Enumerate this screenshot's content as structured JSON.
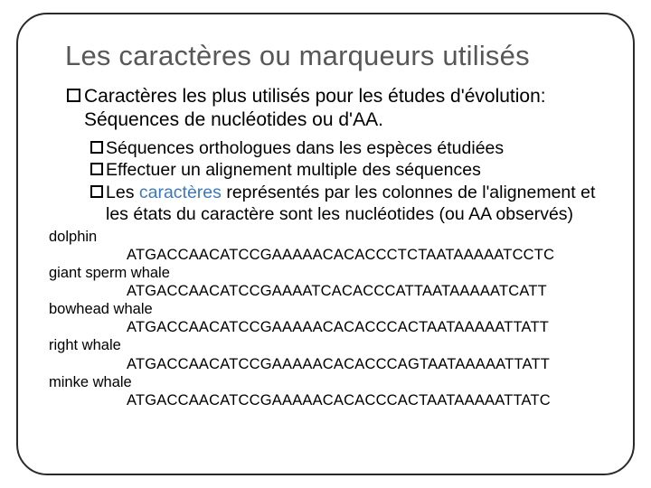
{
  "title": "Les caractères ou marqueurs utilisés",
  "main_bullet": "Caractères les plus utilisés pour les études d'évolution: Séquences de nucléotides ou d'AA.",
  "sub1": "Séquences orthologues dans les espèces étudiées",
  "sub2": "Effectuer un alignement multiple des séquences",
  "sub3_pre": "Les ",
  "sub3_accent": "caractères",
  "sub3_post": " représentés  par les colonnes de l'alignement et les états du caractère sont les nucléotides (ou AA observés)",
  "species": {
    "s1": "dolphin",
    "seq1": "ATGACCAACATCCGAAAAACACACCCTCTAATAAAAATCCTC",
    "s2": "giant sperm whale",
    "seq2": "ATGACCAACATCCGAAAATCACACCCATTAATAAAAATCATT",
    "s3": "bowhead whale",
    "seq3": "ATGACCAACATCCGAAAAACACACCCACTAATAAAAATTATT",
    "s4": "right whale",
    "seq4": "ATGACCAACATCCGAAAAACACACCCAGTAATAAAAATTATT",
    "s5": "minke whale",
    "seq5": "ATGACCAACATCCGAAAAACACACCCACTAATAAAAATTATC"
  },
  "colors": {
    "title": "#585858",
    "text": "#000000",
    "accent": "#3c78c0",
    "border": "#2a2a2a",
    "background": "#ffffff"
  },
  "fonts": {
    "title_size": 31,
    "bullet_size": 21,
    "sub_size": 19.5,
    "seq_size": 16.5
  }
}
